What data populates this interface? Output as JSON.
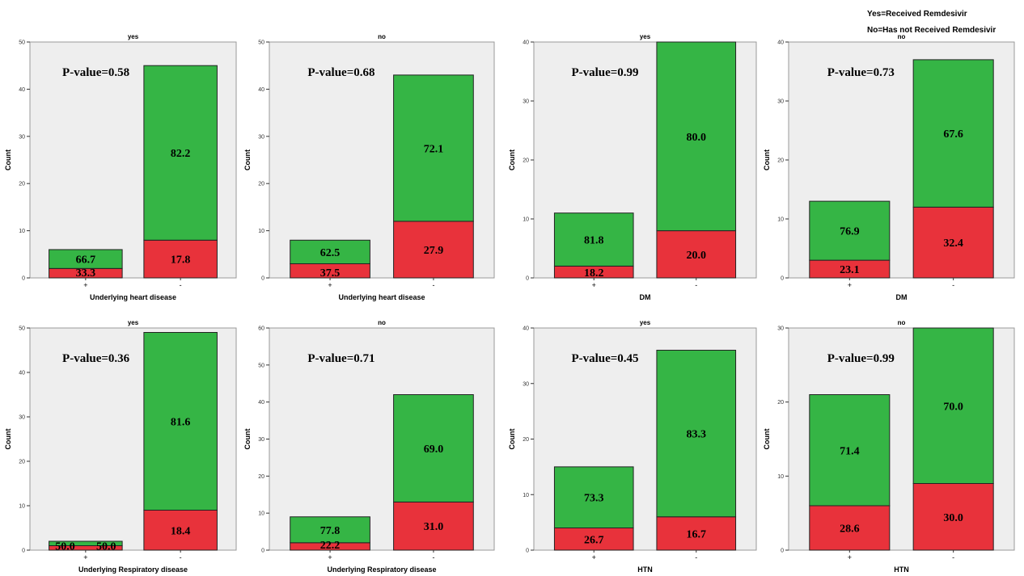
{
  "legend_notes": [
    "Yes=Received Remdesivir",
    "No=Has not Received  Remdesivir"
  ],
  "colors": {
    "red": "#e8323b",
    "green": "#35b545",
    "plot_bg": "#eeeeee"
  },
  "chart_data": [
    {
      "type": "bar",
      "stacked": true,
      "title": "yes",
      "pvalue": "P-value=0.58",
      "xlabel": "Underlying heart disease",
      "ylabel": "Count",
      "categories": [
        "+",
        "-"
      ],
      "ylim": [
        0,
        50
      ],
      "yticks": [
        0,
        10,
        20,
        30,
        40,
        50
      ],
      "totals": [
        6,
        45
      ],
      "lower_counts": [
        2,
        8
      ],
      "lower_labels": [
        "33.3",
        "17.8"
      ],
      "upper_labels": [
        "66.7",
        "82.2"
      ]
    },
    {
      "type": "bar",
      "stacked": true,
      "title": "no",
      "pvalue": "P-value=0.68",
      "xlabel": "Underlying heart disease",
      "ylabel": "Count",
      "categories": [
        "+",
        "-"
      ],
      "ylim": [
        0,
        50
      ],
      "yticks": [
        0,
        10,
        20,
        30,
        40,
        50
      ],
      "totals": [
        8,
        43
      ],
      "lower_counts": [
        3,
        12
      ],
      "lower_labels": [
        "37.5",
        "27.9"
      ],
      "upper_labels": [
        "62.5",
        "72.1"
      ]
    },
    {
      "type": "bar",
      "stacked": true,
      "title": "yes",
      "pvalue": "P-value=0.99",
      "xlabel": "DM",
      "ylabel": "Count",
      "categories": [
        "+",
        "-"
      ],
      "ylim": [
        0,
        40
      ],
      "yticks": [
        0,
        10,
        20,
        30,
        40
      ],
      "totals": [
        11,
        40
      ],
      "lower_counts": [
        2,
        8
      ],
      "lower_labels": [
        "18.2",
        "20.0"
      ],
      "upper_labels": [
        "81.8",
        "80.0"
      ]
    },
    {
      "type": "bar",
      "stacked": true,
      "title": "no",
      "pvalue": "P-value=0.73",
      "xlabel": "DM",
      "ylabel": "Count",
      "categories": [
        "+",
        "-"
      ],
      "ylim": [
        0,
        40
      ],
      "yticks": [
        0,
        10,
        20,
        30,
        40
      ],
      "totals": [
        13,
        37
      ],
      "lower_counts": [
        3,
        12
      ],
      "lower_labels": [
        "23.1",
        "32.4"
      ],
      "upper_labels": [
        "76.9",
        "67.6"
      ]
    },
    {
      "type": "bar",
      "stacked": true,
      "title": "yes",
      "pvalue": "P-value=0.36",
      "xlabel": "Underlying Respiratory disease",
      "ylabel": "Count",
      "categories": [
        "+",
        "-"
      ],
      "ylim": [
        0,
        50
      ],
      "yticks": [
        0,
        10,
        20,
        30,
        40,
        50
      ],
      "totals": [
        2,
        49
      ],
      "lower_counts": [
        1,
        9
      ],
      "lower_labels": [
        "50.0",
        "18.4"
      ],
      "upper_labels": [
        "50.0",
        "81.6"
      ]
    },
    {
      "type": "bar",
      "stacked": true,
      "title": "no",
      "pvalue": "P-value=0.71",
      "xlabel": "Underlying Respiratory disease",
      "ylabel": "Count",
      "categories": [
        "+",
        "-"
      ],
      "ylim": [
        0,
        60
      ],
      "yticks": [
        0,
        10,
        20,
        30,
        40,
        50,
        60
      ],
      "totals": [
        9,
        42
      ],
      "lower_counts": [
        2,
        13
      ],
      "lower_labels": [
        "22.2",
        "31.0"
      ],
      "upper_labels": [
        "77.8",
        "69.0"
      ]
    },
    {
      "type": "bar",
      "stacked": true,
      "title": "yes",
      "pvalue": "P-value=0.45",
      "xlabel": "HTN",
      "ylabel": "Count",
      "categories": [
        "+",
        "-"
      ],
      "ylim": [
        0,
        40
      ],
      "yticks": [
        0,
        10,
        20,
        30,
        40
      ],
      "totals": [
        15,
        36
      ],
      "lower_counts": [
        4,
        6
      ],
      "lower_labels": [
        "26.7",
        "16.7"
      ],
      "upper_labels": [
        "73.3",
        "83.3"
      ]
    },
    {
      "type": "bar",
      "stacked": true,
      "title": "no",
      "pvalue": "P-value=0.99",
      "xlabel": "HTN",
      "ylabel": "Count",
      "categories": [
        "+",
        "-"
      ],
      "ylim": [
        0,
        30
      ],
      "yticks": [
        0,
        10,
        20,
        30
      ],
      "totals": [
        21,
        30
      ],
      "lower_counts": [
        6,
        9
      ],
      "lower_labels": [
        "28.6",
        "30.0"
      ],
      "upper_labels": [
        "71.4",
        "70.0"
      ]
    }
  ]
}
